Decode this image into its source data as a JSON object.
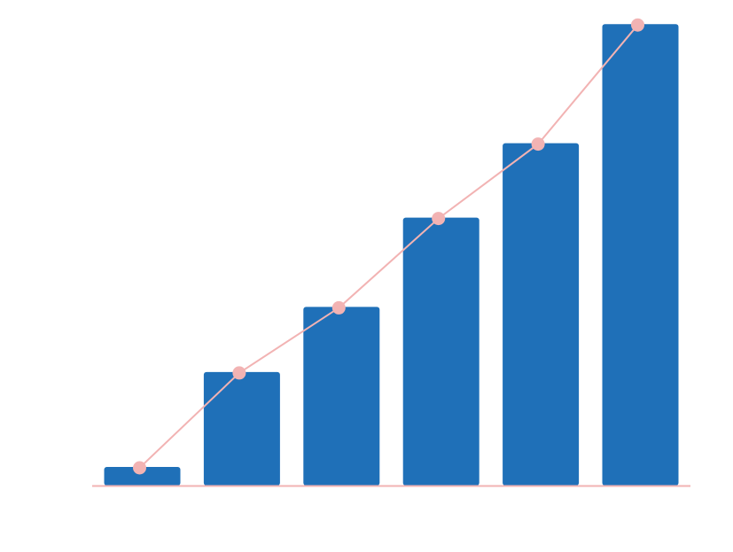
{
  "chart_data": {
    "type": "bar",
    "categories": [
      "",
      "",
      "",
      "",
      "",
      ""
    ],
    "series": [
      {
        "values": [
          1.0,
          6.1,
          9.6,
          14.4,
          18.4,
          24.8
        ]
      }
    ],
    "overlay_line": {
      "values": [
        1.0,
        6.1,
        9.6,
        14.4,
        18.4,
        24.8
      ]
    },
    "ylim": [
      0,
      25
    ],
    "grid": false,
    "title": "",
    "xlabel": "",
    "ylabel": ""
  },
  "colors": {
    "bar": "#1f70b8",
    "line": "#f2b3b3",
    "marker": "#f2b3b3",
    "axis": "#f2b3b3",
    "background": "#ffffff"
  }
}
